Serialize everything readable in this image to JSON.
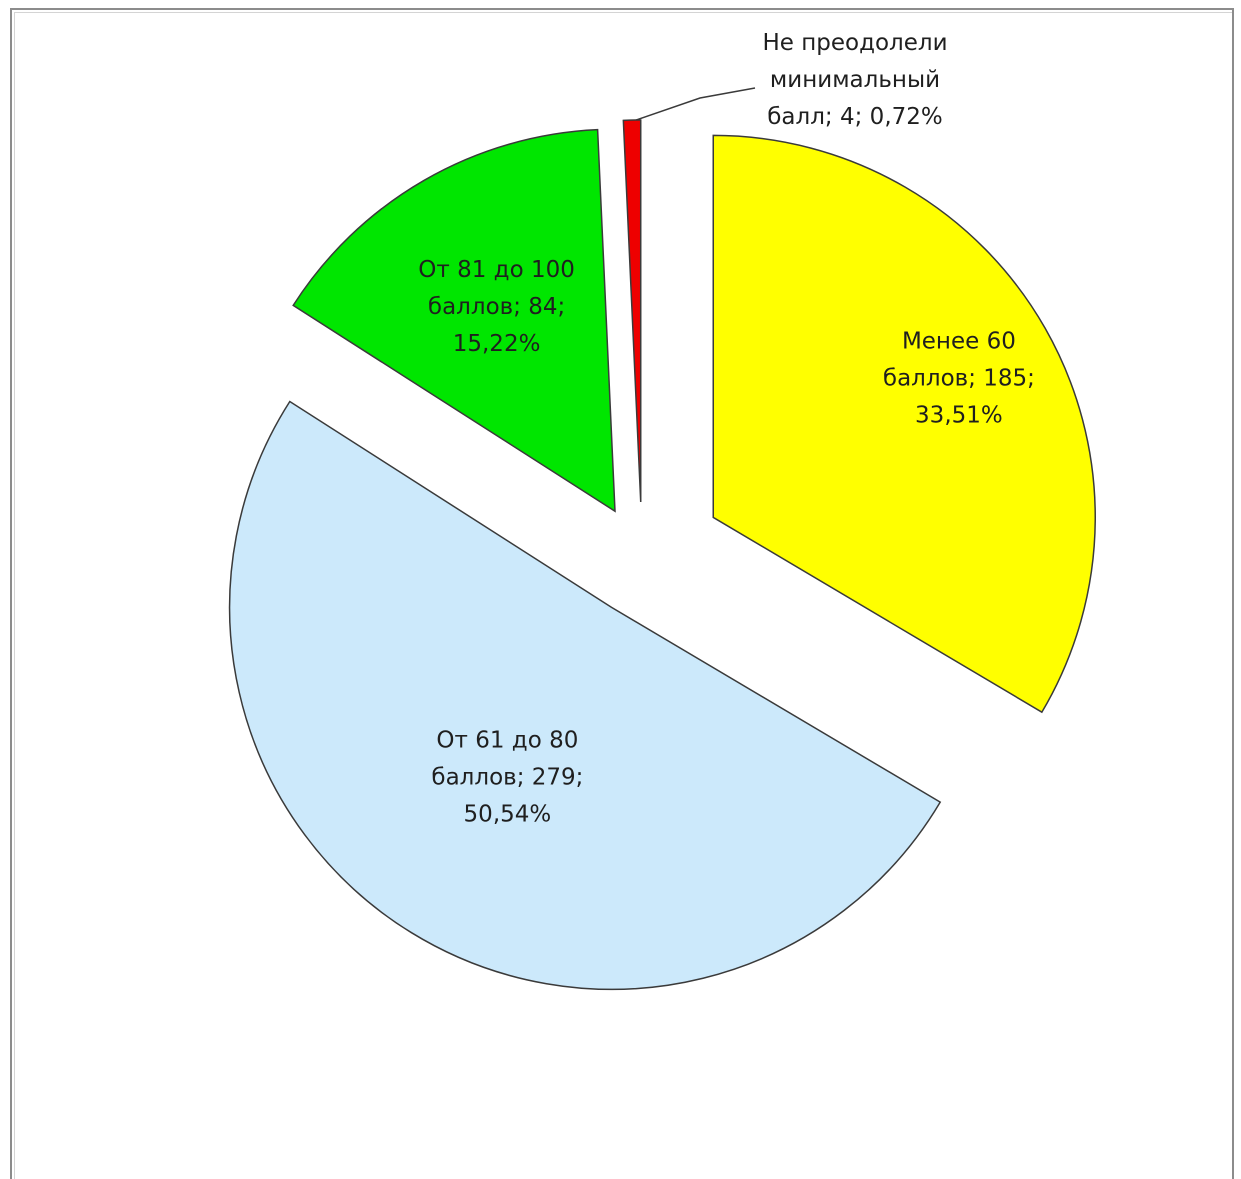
{
  "chart_data": {
    "type": "pie",
    "exploded": true,
    "slices": [
      {
        "label_lines": [
          "Менее 60",
          "баллов; 185;",
          "33,51%"
        ],
        "category": "Менее 60 баллов",
        "value": 185,
        "percent": 33.51,
        "color": "#ffff00"
      },
      {
        "label_lines": [
          "От 61 до 80",
          "баллов; 279;",
          "50,54%"
        ],
        "category": "От 61 до 80 баллов",
        "value": 279,
        "percent": 50.54,
        "color": "#cce9fb"
      },
      {
        "label_lines": [
          "От 81 до 100",
          "баллов; 84;",
          "15,22%"
        ],
        "category": "От 81 до 100 баллов",
        "value": 84,
        "percent": 15.22,
        "color": "#00e600"
      },
      {
        "label_lines": [
          "Не преодолели",
          "минимальный",
          "балл; 4; 0,72%"
        ],
        "category": "Не преодолели минимальный балл",
        "value": 4,
        "percent": 0.72,
        "color": "#ee0000"
      }
    ],
    "legend": "none"
  }
}
